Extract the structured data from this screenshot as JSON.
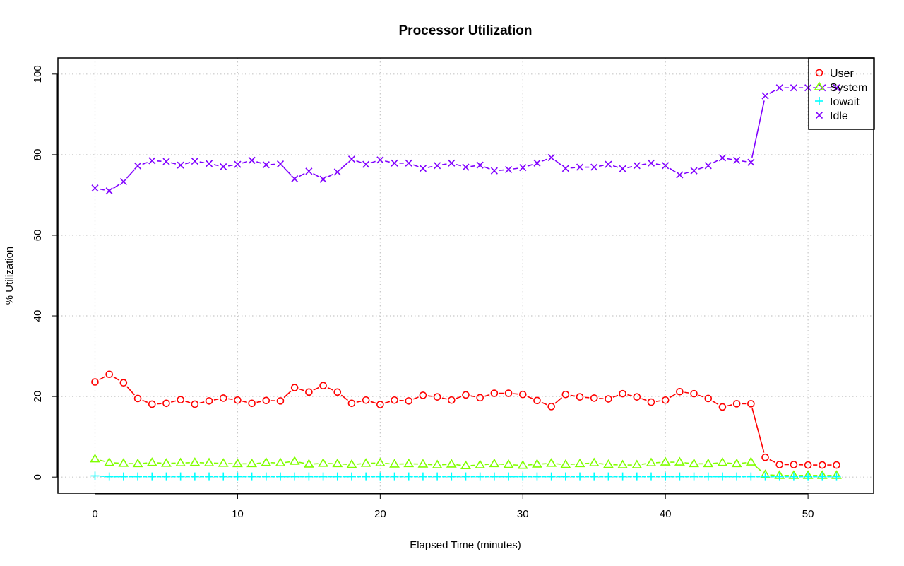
{
  "chart_data": {
    "type": "line",
    "title": "Processor Utilization",
    "xlabel": "Elapsed Time (minutes)",
    "ylabel": "% Utilization",
    "xlim": [
      -2.6,
      54.6
    ],
    "ylim": [
      -4,
      104
    ],
    "x_ticks": [
      0,
      10,
      20,
      30,
      40,
      50
    ],
    "y_ticks": [
      0,
      20,
      40,
      60,
      80,
      100
    ],
    "grid": true,
    "legend_position": "top-right",
    "x": [
      0,
      1,
      2,
      3,
      4,
      5,
      6,
      7,
      8,
      9,
      10,
      11,
      12,
      13,
      14,
      15,
      16,
      17,
      18,
      19,
      20,
      21,
      22,
      23,
      24,
      25,
      26,
      27,
      28,
      29,
      30,
      31,
      32,
      33,
      34,
      35,
      36,
      37,
      38,
      39,
      40,
      41,
      42,
      43,
      44,
      45,
      46,
      47,
      48,
      49,
      50,
      51,
      52
    ],
    "series": [
      {
        "name": "User",
        "color": "#ff0000",
        "marker": "circle",
        "values": [
          23.6,
          25.5,
          23.4,
          19.5,
          18.1,
          18.3,
          19.2,
          18.1,
          18.9,
          19.6,
          19.1,
          18.3,
          19.0,
          18.9,
          22.2,
          21.1,
          22.7,
          21.1,
          18.3,
          19.1,
          18.0,
          19.1,
          18.9,
          20.3,
          19.9,
          19.1,
          20.4,
          19.7,
          20.8,
          20.8,
          20.5,
          19.0,
          17.5,
          20.5,
          19.9,
          19.6,
          19.4,
          20.7,
          19.9,
          18.6,
          19.1,
          21.2,
          20.7,
          19.5,
          17.4,
          18.2,
          18.2,
          4.9,
          3.1,
          3.1,
          3.0,
          3.0,
          3.0
        ]
      },
      {
        "name": "System",
        "color": "#80ff00",
        "marker": "triangle",
        "values": [
          4.5,
          3.6,
          3.4,
          3.3,
          3.6,
          3.4,
          3.5,
          3.6,
          3.5,
          3.4,
          3.3,
          3.3,
          3.6,
          3.5,
          3.9,
          3.2,
          3.4,
          3.3,
          3.1,
          3.4,
          3.5,
          3.2,
          3.3,
          3.2,
          3.0,
          3.2,
          2.8,
          3.0,
          3.3,
          3.1,
          2.9,
          3.2,
          3.4,
          3.1,
          3.3,
          3.5,
          3.1,
          3.0,
          3.0,
          3.5,
          3.7,
          3.7,
          3.3,
          3.3,
          3.6,
          3.3,
          3.7,
          0.6,
          0.4,
          0.4,
          0.4,
          0.4,
          0.4
        ]
      },
      {
        "name": "Iowait",
        "color": "#00ffff",
        "marker": "plus",
        "values": [
          0.3,
          0.1,
          0.1,
          0.1,
          0.1,
          0.1,
          0.1,
          0.1,
          0.1,
          0.1,
          0.1,
          0.1,
          0.1,
          0.1,
          0.1,
          0.1,
          0.1,
          0.1,
          0.1,
          0.1,
          0.1,
          0.1,
          0.1,
          0.1,
          0.1,
          0.1,
          0.1,
          0.1,
          0.1,
          0.1,
          0.1,
          0.1,
          0.1,
          0.1,
          0.1,
          0.1,
          0.1,
          0.1,
          0.1,
          0.1,
          0.1,
          0.1,
          0.1,
          0.1,
          0.1,
          0.1,
          0.1,
          0.1,
          0.1,
          0.1,
          0.1,
          0.1,
          0.1
        ]
      },
      {
        "name": "Idle",
        "color": "#8000ff",
        "marker": "cross",
        "values": [
          71.7,
          71.0,
          73.3,
          77.2,
          78.5,
          78.3,
          77.4,
          78.4,
          77.8,
          77.0,
          77.6,
          78.6,
          77.5,
          77.7,
          74.0,
          75.9,
          73.9,
          75.7,
          78.9,
          77.6,
          78.7,
          77.9,
          77.9,
          76.6,
          77.3,
          77.9,
          76.9,
          77.4,
          76.0,
          76.3,
          76.8,
          77.9,
          79.3,
          76.6,
          76.9,
          76.9,
          77.6,
          76.5,
          77.3,
          77.9,
          77.3,
          75.0,
          76.0,
          77.3,
          79.2,
          78.6,
          78.1,
          94.6,
          96.6,
          96.6,
          96.6,
          96.6,
          96.6
        ]
      }
    ]
  }
}
